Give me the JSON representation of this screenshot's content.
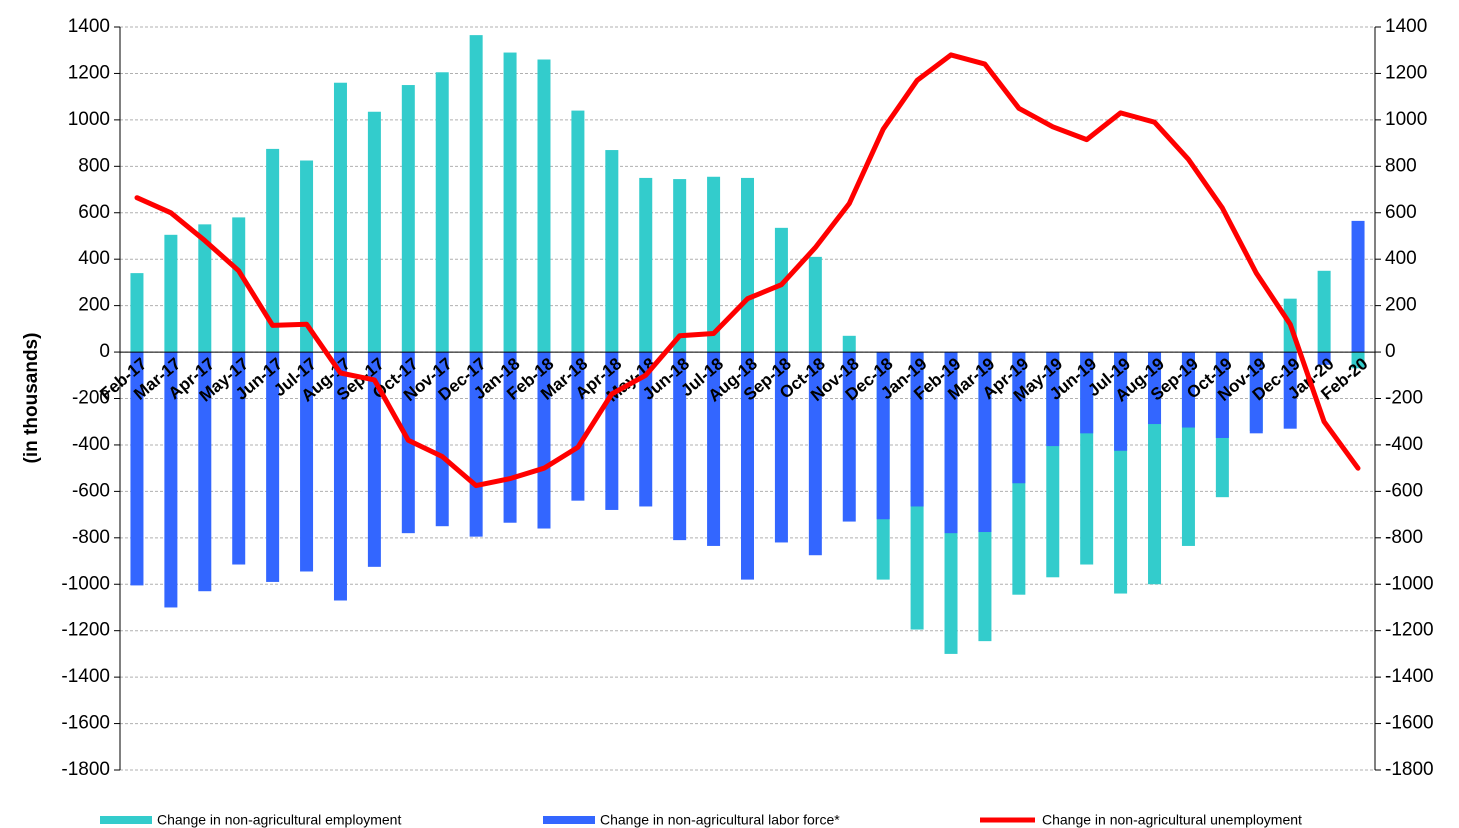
{
  "chart_data": {
    "type": "bar",
    "y_label": "(in thousands)",
    "categories": [
      "Feb-17",
      "Mar-17",
      "Apr-17",
      "May-17",
      "Jun-17",
      "Jul-17",
      "Aug-17",
      "Sep-17",
      "Oct-17",
      "Nov-17",
      "Dec-17",
      "Jan-18",
      "Feb-18",
      "Mar-18",
      "Apr-18",
      "May-18",
      "Jun-18",
      "Jul-18",
      "Aug-18",
      "Sep-18",
      "Oct-18",
      "Nov-18",
      "Dec-18",
      "Jan-19",
      "Feb-19",
      "Mar-19",
      "Apr-19",
      "May-19",
      "Jun-19",
      "Jul-19",
      "Aug-19",
      "Sep-19",
      "Oct-19",
      "Nov-19",
      "Dec-19",
      "Jan-20",
      "Feb-20"
    ],
    "series": [
      {
        "name": "Change in non-agricultural employment",
        "color": "#33cccc",
        "type": "bar",
        "values": [
          340,
          505,
          550,
          580,
          875,
          825,
          1160,
          1035,
          1150,
          1205,
          1365,
          1290,
          1260,
          1040,
          870,
          750,
          745,
          755,
          750,
          535,
          410,
          70,
          -980,
          -1195,
          -1300,
          -1245,
          -1045,
          -970,
          -915,
          -1040,
          -1000,
          -835,
          -625,
          -340,
          230,
          350,
          -70
        ]
      },
      {
        "name": "Change in non-agricultural labor force*",
        "color": "#3366ff",
        "type": "bar",
        "values": [
          -1005,
          -1100,
          -1030,
          -915,
          -990,
          -945,
          -1070,
          -925,
          -780,
          -750,
          -795,
          -735,
          -760,
          -640,
          -680,
          -665,
          -810,
          -835,
          -980,
          -820,
          -875,
          -730,
          -720,
          -665,
          -780,
          -775,
          -565,
          -405,
          -350,
          -425,
          -310,
          -325,
          -370,
          -350,
          -330,
          -55,
          565
        ]
      },
      {
        "name": "Change in non-agricultural unemployment",
        "color": "#ff0000",
        "type": "line",
        "axis": "y2",
        "values": [
          665,
          600,
          480,
          350,
          115,
          120,
          -90,
          -120,
          -380,
          -450,
          -575,
          -545,
          -500,
          -410,
          -180,
          -100,
          70,
          80,
          230,
          290,
          450,
          640,
          960,
          1170,
          1280,
          1240,
          1050,
          970,
          915,
          1030,
          990,
          830,
          620,
          340,
          120,
          -300,
          -500
        ]
      }
    ],
    "ylim": [
      -1800,
      1400
    ],
    "yticks": [
      -1800,
      -1600,
      -1400,
      -1200,
      -1000,
      -800,
      -600,
      -400,
      -200,
      0,
      200,
      400,
      600,
      800,
      1000,
      1200,
      1400
    ],
    "y2lim": [
      -1800,
      1400
    ],
    "y2ticks": [
      -1800,
      -1600,
      -1400,
      -1200,
      -1000,
      -800,
      -600,
      -400,
      -200,
      0,
      200,
      400,
      600,
      800,
      1000,
      1200,
      1400
    ],
    "grid": true,
    "legend": "bottom"
  }
}
